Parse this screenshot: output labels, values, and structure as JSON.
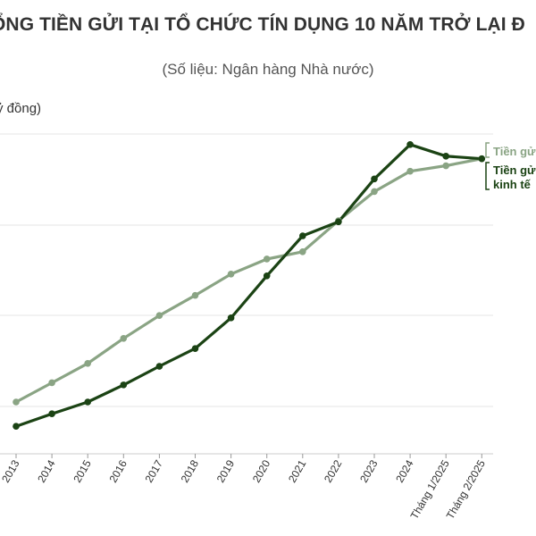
{
  "header": {
    "title": "ỔNG TIỀN GỬI TẠI TỔ CHỨC TÍN DỤNG 10 NĂM TRỞ LẠI Đ",
    "subtitle": "(Số liệu: Ngân hàng Nhà nước)",
    "unit": "ỷ đồng)"
  },
  "colors": {
    "dark": "#1b4314",
    "light": "#8aa484",
    "grid": "#e6e6e6"
  },
  "chart_data": {
    "type": "line",
    "categories": [
      "2013",
      "2014",
      "2015",
      "2016",
      "2017",
      "2018",
      "2019",
      "2020",
      "2021",
      "2022",
      "2023",
      "2024",
      "Tháng 1/2025",
      "Tháng 2/2025"
    ],
    "series": [
      {
        "name": "Tiền gử",
        "color": "#8aa484",
        "values": [
          0.0,
          0.0735,
          0.1475,
          0.243,
          0.3303,
          0.4074,
          0.4888,
          0.5462,
          0.5741,
          0.6928,
          0.8038,
          0.8815,
          0.9026,
          0.9294
        ]
      },
      {
        "name": "Tiền gử kinh tế",
        "color": "#1b4314",
        "values": [
          -0.0928,
          -0.0451,
          0.0,
          0.0653,
          0.1364,
          0.2043,
          0.3213,
          0.4819,
          0.6348,
          0.6885,
          0.8523,
          0.9837,
          0.9392,
          0.9294
        ]
      }
    ],
    "legend_placement": "right",
    "grid": true
  }
}
